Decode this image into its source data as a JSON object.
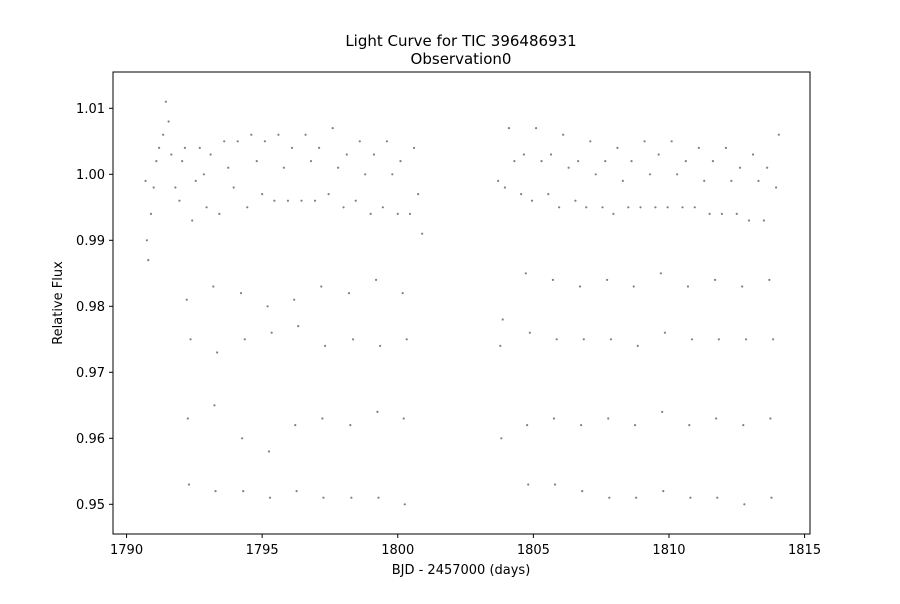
{
  "chart_data": {
    "type": "scatter",
    "title_lines": [
      "Light Curve for TIC 396486931",
      "Observation0"
    ],
    "xlabel": "BJD - 2457000 (days)",
    "ylabel": "Relative Flux",
    "xlim": [
      1789.5,
      1815.2
    ],
    "ylim": [
      0.9455,
      1.0155
    ],
    "xticks": [
      1790,
      1795,
      1800,
      1805,
      1810,
      1815
    ],
    "xtick_labels": [
      "1790",
      "1795",
      "1800",
      "1805",
      "1810",
      "1815"
    ],
    "yticks": [
      0.95,
      0.96,
      0.97,
      0.98,
      0.99,
      1.0,
      1.01
    ],
    "ytick_labels": [
      "0.95",
      "0.96",
      "0.97",
      "0.98",
      "0.99",
      "1.00",
      "1.01"
    ],
    "grid": false,
    "marker_color": "#808080",
    "series": [
      {
        "segments": [
          [
            1790.7,
            1800.9
          ],
          [
            1803.7,
            1814.1
          ]
        ],
        "points": [
          [
            1790.7,
            0.999
          ],
          [
            1790.75,
            0.99
          ],
          [
            1790.8,
            0.987
          ],
          [
            1790.9,
            0.994
          ],
          [
            1791.0,
            0.998
          ],
          [
            1791.1,
            1.002
          ],
          [
            1791.2,
            1.004
          ],
          [
            1791.35,
            1.006
          ],
          [
            1791.45,
            1.011
          ],
          [
            1791.55,
            1.008
          ],
          [
            1791.65,
            1.003
          ],
          [
            1791.8,
            0.998
          ],
          [
            1791.95,
            0.996
          ],
          [
            1792.05,
            1.002
          ],
          [
            1792.15,
            1.004
          ],
          [
            1792.22,
            0.981
          ],
          [
            1792.26,
            0.963
          ],
          [
            1792.3,
            0.953
          ],
          [
            1792.36,
            0.975
          ],
          [
            1792.42,
            0.993
          ],
          [
            1792.55,
            0.999
          ],
          [
            1792.7,
            1.004
          ],
          [
            1792.85,
            1.0
          ],
          [
            1792.95,
            0.995
          ],
          [
            1793.1,
            1.003
          ],
          [
            1793.2,
            0.983
          ],
          [
            1793.24,
            0.965
          ],
          [
            1793.28,
            0.952
          ],
          [
            1793.34,
            0.973
          ],
          [
            1793.42,
            0.994
          ],
          [
            1793.6,
            1.005
          ],
          [
            1793.75,
            1.001
          ],
          [
            1793.95,
            0.998
          ],
          [
            1794.1,
            1.005
          ],
          [
            1794.22,
            0.982
          ],
          [
            1794.26,
            0.96
          ],
          [
            1794.3,
            0.952
          ],
          [
            1794.36,
            0.975
          ],
          [
            1794.45,
            0.995
          ],
          [
            1794.6,
            1.006
          ],
          [
            1794.8,
            1.002
          ],
          [
            1795.0,
            0.997
          ],
          [
            1795.1,
            1.005
          ],
          [
            1795.2,
            0.98
          ],
          [
            1795.25,
            0.958
          ],
          [
            1795.29,
            0.951
          ],
          [
            1795.35,
            0.976
          ],
          [
            1795.45,
            0.996
          ],
          [
            1795.6,
            1.006
          ],
          [
            1795.8,
            1.001
          ],
          [
            1795.95,
            0.996
          ],
          [
            1796.1,
            1.004
          ],
          [
            1796.18,
            0.981
          ],
          [
            1796.22,
            0.962
          ],
          [
            1796.27,
            0.952
          ],
          [
            1796.33,
            0.977
          ],
          [
            1796.45,
            0.996
          ],
          [
            1796.6,
            1.006
          ],
          [
            1796.8,
            1.002
          ],
          [
            1796.95,
            0.996
          ],
          [
            1797.1,
            1.004
          ],
          [
            1797.18,
            0.983
          ],
          [
            1797.22,
            0.963
          ],
          [
            1797.26,
            0.951
          ],
          [
            1797.32,
            0.974
          ],
          [
            1797.45,
            0.997
          ],
          [
            1797.6,
            1.007
          ],
          [
            1797.8,
            1.001
          ],
          [
            1798.0,
            0.995
          ],
          [
            1798.12,
            1.003
          ],
          [
            1798.2,
            0.982
          ],
          [
            1798.25,
            0.962
          ],
          [
            1798.29,
            0.951
          ],
          [
            1798.35,
            0.975
          ],
          [
            1798.45,
            0.996
          ],
          [
            1798.6,
            1.005
          ],
          [
            1798.8,
            1.0
          ],
          [
            1799.0,
            0.994
          ],
          [
            1799.12,
            1.003
          ],
          [
            1799.2,
            0.984
          ],
          [
            1799.25,
            0.964
          ],
          [
            1799.29,
            0.951
          ],
          [
            1799.35,
            0.974
          ],
          [
            1799.45,
            0.995
          ],
          [
            1799.6,
            1.005
          ],
          [
            1799.8,
            1.0
          ],
          [
            1800.0,
            0.994
          ],
          [
            1800.1,
            1.002
          ],
          [
            1800.18,
            0.982
          ],
          [
            1800.22,
            0.963
          ],
          [
            1800.26,
            0.95
          ],
          [
            1800.33,
            0.975
          ],
          [
            1800.45,
            0.994
          ],
          [
            1800.6,
            1.004
          ],
          [
            1800.75,
            0.997
          ],
          [
            1800.9,
            0.991
          ],
          [
            1803.7,
            0.999
          ],
          [
            1803.78,
            0.974
          ],
          [
            1803.82,
            0.96
          ],
          [
            1803.87,
            0.978
          ],
          [
            1803.95,
            0.998
          ],
          [
            1804.1,
            1.007
          ],
          [
            1804.3,
            1.002
          ],
          [
            1804.55,
            0.997
          ],
          [
            1804.65,
            1.003
          ],
          [
            1804.72,
            0.985
          ],
          [
            1804.77,
            0.962
          ],
          [
            1804.81,
            0.953
          ],
          [
            1804.87,
            0.976
          ],
          [
            1804.95,
            0.996
          ],
          [
            1805.1,
            1.007
          ],
          [
            1805.3,
            1.002
          ],
          [
            1805.55,
            0.997
          ],
          [
            1805.65,
            1.003
          ],
          [
            1805.72,
            0.984
          ],
          [
            1805.76,
            0.963
          ],
          [
            1805.8,
            0.953
          ],
          [
            1805.86,
            0.975
          ],
          [
            1805.95,
            0.995
          ],
          [
            1806.1,
            1.006
          ],
          [
            1806.3,
            1.001
          ],
          [
            1806.55,
            0.996
          ],
          [
            1806.65,
            1.002
          ],
          [
            1806.72,
            0.983
          ],
          [
            1806.76,
            0.962
          ],
          [
            1806.8,
            0.952
          ],
          [
            1806.86,
            0.975
          ],
          [
            1806.95,
            0.995
          ],
          [
            1807.1,
            1.005
          ],
          [
            1807.3,
            1.0
          ],
          [
            1807.55,
            0.995
          ],
          [
            1807.65,
            1.002
          ],
          [
            1807.72,
            0.984
          ],
          [
            1807.76,
            0.963
          ],
          [
            1807.8,
            0.951
          ],
          [
            1807.86,
            0.975
          ],
          [
            1807.95,
            0.994
          ],
          [
            1808.1,
            1.004
          ],
          [
            1808.3,
            0.999
          ],
          [
            1808.5,
            0.995
          ],
          [
            1808.62,
            1.002
          ],
          [
            1808.7,
            0.983
          ],
          [
            1808.75,
            0.962
          ],
          [
            1808.79,
            0.951
          ],
          [
            1808.85,
            0.974
          ],
          [
            1808.95,
            0.995
          ],
          [
            1809.1,
            1.005
          ],
          [
            1809.3,
            1.0
          ],
          [
            1809.5,
            0.995
          ],
          [
            1809.62,
            1.003
          ],
          [
            1809.7,
            0.985
          ],
          [
            1809.75,
            0.964
          ],
          [
            1809.79,
            0.952
          ],
          [
            1809.85,
            0.976
          ],
          [
            1809.95,
            0.995
          ],
          [
            1810.1,
            1.005
          ],
          [
            1810.3,
            1.0
          ],
          [
            1810.5,
            0.995
          ],
          [
            1810.62,
            1.002
          ],
          [
            1810.7,
            0.983
          ],
          [
            1810.75,
            0.962
          ],
          [
            1810.79,
            0.951
          ],
          [
            1810.85,
            0.975
          ],
          [
            1810.95,
            0.995
          ],
          [
            1811.1,
            1.004
          ],
          [
            1811.3,
            0.999
          ],
          [
            1811.5,
            0.994
          ],
          [
            1811.62,
            1.002
          ],
          [
            1811.7,
            0.984
          ],
          [
            1811.74,
            0.963
          ],
          [
            1811.78,
            0.951
          ],
          [
            1811.84,
            0.975
          ],
          [
            1811.95,
            0.994
          ],
          [
            1812.1,
            1.004
          ],
          [
            1812.3,
            0.999
          ],
          [
            1812.5,
            0.994
          ],
          [
            1812.62,
            1.001
          ],
          [
            1812.7,
            0.983
          ],
          [
            1812.74,
            0.962
          ],
          [
            1812.78,
            0.95
          ],
          [
            1812.84,
            0.975
          ],
          [
            1812.95,
            0.993
          ],
          [
            1813.1,
            1.003
          ],
          [
            1813.3,
            0.999
          ],
          [
            1813.5,
            0.993
          ],
          [
            1813.62,
            1.001
          ],
          [
            1813.7,
            0.984
          ],
          [
            1813.74,
            0.963
          ],
          [
            1813.78,
            0.951
          ],
          [
            1813.84,
            0.975
          ],
          [
            1813.95,
            0.998
          ],
          [
            1814.05,
            1.006
          ]
        ]
      }
    ]
  }
}
